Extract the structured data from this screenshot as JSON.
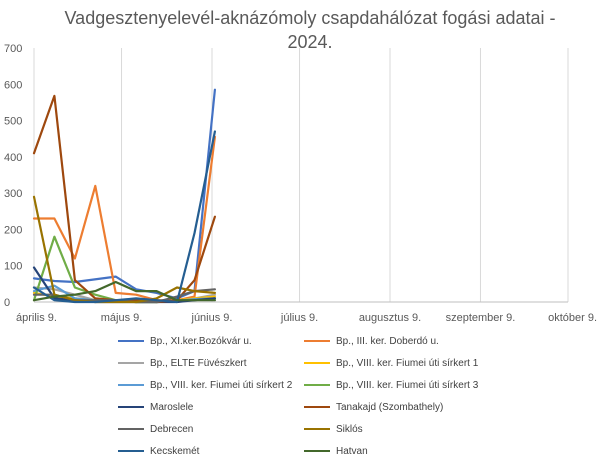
{
  "chart_data": {
    "type": "line",
    "title": "Vadgesztenyelevél-aknázómoly csapdahálózat fogási adatai - 2024.",
    "xlabel": "",
    "ylabel": "",
    "ylim": [
      0,
      700
    ],
    "yticks": [
      0,
      100,
      200,
      300,
      400,
      500,
      600,
      700
    ],
    "xlim": [
      "2024-04-09",
      "2024-10-09"
    ],
    "xticks": [
      {
        "label": "április 9.",
        "date": "2024-04-09"
      },
      {
        "label": "május 9.",
        "date": "2024-05-09"
      },
      {
        "label": "június 9.",
        "date": "2024-06-09"
      },
      {
        "label": "július 9.",
        "date": "2024-07-09"
      },
      {
        "label": "augusztus 9.",
        "date": "2024-08-09"
      },
      {
        "label": "szeptember 9.",
        "date": "2024-09-09"
      },
      {
        "label": "október 9.",
        "date": "2024-10-09"
      }
    ],
    "grid": "vertical",
    "legend_position": "bottom",
    "series": [
      {
        "name": "Bp., XI.ker.Bozókvár u.",
        "color": "#4472c4",
        "points": [
          [
            "2024-04-09",
            65
          ],
          [
            "2024-04-16",
            58
          ],
          [
            "2024-04-23",
            55
          ],
          [
            "2024-05-07",
            70
          ],
          [
            "2024-05-14",
            35
          ],
          [
            "2024-05-21",
            25
          ],
          [
            "2024-05-28",
            10
          ],
          [
            "2024-06-03",
            30
          ],
          [
            "2024-06-10",
            585
          ]
        ]
      },
      {
        "name": "Bp., III. ker. Doberdó u.",
        "color": "#ed7d31",
        "points": [
          [
            "2024-04-09",
            230
          ],
          [
            "2024-04-16",
            230
          ],
          [
            "2024-04-23",
            120
          ],
          [
            "2024-04-30",
            320
          ],
          [
            "2024-05-07",
            25
          ],
          [
            "2024-05-14",
            20
          ],
          [
            "2024-05-21",
            5
          ],
          [
            "2024-05-28",
            5
          ],
          [
            "2024-06-03",
            15
          ],
          [
            "2024-06-10",
            455
          ]
        ]
      },
      {
        "name": "Bp., ELTE Füvészkert",
        "color": "#a5a5a5",
        "points": [
          [
            "2024-04-09",
            40
          ],
          [
            "2024-04-16",
            35
          ],
          [
            "2024-04-23",
            20
          ],
          [
            "2024-04-30",
            5
          ],
          [
            "2024-05-07",
            3
          ],
          [
            "2024-05-14",
            0
          ],
          [
            "2024-05-21",
            0
          ],
          [
            "2024-05-28",
            2
          ],
          [
            "2024-06-03",
            10
          ],
          [
            "2024-06-10",
            20
          ]
        ]
      },
      {
        "name": "Bp., VIII. ker. Fiumei úti sírkert 1",
        "color": "#ffc000",
        "points": [
          [
            "2024-04-09",
            25
          ],
          [
            "2024-04-16",
            15
          ],
          [
            "2024-04-23",
            10
          ],
          [
            "2024-04-30",
            5
          ],
          [
            "2024-05-07",
            2
          ],
          [
            "2024-05-14",
            0
          ],
          [
            "2024-05-21",
            0
          ],
          [
            "2024-05-28",
            5
          ],
          [
            "2024-06-03",
            10
          ],
          [
            "2024-06-10",
            15
          ]
        ]
      },
      {
        "name": "Bp., VIII. ker. Fiumei úti sírkert 2",
        "color": "#5b9bd5",
        "points": [
          [
            "2024-04-09",
            30
          ],
          [
            "2024-04-16",
            45
          ],
          [
            "2024-04-23",
            10
          ],
          [
            "2024-04-30",
            5
          ],
          [
            "2024-05-07",
            3
          ],
          [
            "2024-05-14",
            0
          ],
          [
            "2024-05-21",
            0
          ],
          [
            "2024-05-28",
            3
          ],
          [
            "2024-06-03",
            8
          ],
          [
            "2024-06-10",
            10
          ]
        ]
      },
      {
        "name": "Bp., VIII. ker. Fiumei úti sírkert 3",
        "color": "#70ad47",
        "points": [
          [
            "2024-04-09",
            5
          ],
          [
            "2024-04-16",
            180
          ],
          [
            "2024-04-23",
            40
          ],
          [
            "2024-04-30",
            20
          ],
          [
            "2024-05-07",
            5
          ],
          [
            "2024-05-14",
            0
          ],
          [
            "2024-05-21",
            0
          ],
          [
            "2024-05-28",
            2
          ],
          [
            "2024-06-03",
            5
          ],
          [
            "2024-06-10",
            10
          ]
        ]
      },
      {
        "name": "Maroslele",
        "color": "#264478",
        "points": [
          [
            "2024-04-09",
            95
          ],
          [
            "2024-04-16",
            10
          ],
          [
            "2024-04-23",
            5
          ],
          [
            "2024-04-30",
            0
          ],
          [
            "2024-05-07",
            0
          ],
          [
            "2024-05-14",
            0
          ],
          [
            "2024-05-21",
            0
          ],
          [
            "2024-05-28",
            0
          ],
          [
            "2024-06-03",
            5
          ],
          [
            "2024-06-10",
            10
          ]
        ]
      },
      {
        "name": "Tanakajd (Szombathely)",
        "color": "#9e480e",
        "points": [
          [
            "2024-04-09",
            410
          ],
          [
            "2024-04-16",
            568
          ],
          [
            "2024-04-23",
            60
          ],
          [
            "2024-04-30",
            10
          ],
          [
            "2024-05-07",
            5
          ],
          [
            "2024-05-14",
            5
          ],
          [
            "2024-05-21",
            0
          ],
          [
            "2024-05-28",
            5
          ],
          [
            "2024-06-03",
            60
          ],
          [
            "2024-06-10",
            235
          ]
        ]
      },
      {
        "name": "Debrecen",
        "color": "#636363",
        "points": [
          [
            "2024-04-09",
            20
          ],
          [
            "2024-04-16",
            20
          ],
          [
            "2024-04-23",
            5
          ],
          [
            "2024-04-30",
            5
          ],
          [
            "2024-05-07",
            5
          ],
          [
            "2024-05-14",
            0
          ],
          [
            "2024-05-21",
            0
          ],
          [
            "2024-05-28",
            15
          ],
          [
            "2024-06-03",
            30
          ],
          [
            "2024-06-10",
            35
          ]
        ]
      },
      {
        "name": "Siklós",
        "color": "#997300",
        "points": [
          [
            "2024-04-09",
            290
          ],
          [
            "2024-04-16",
            20
          ],
          [
            "2024-04-23",
            5
          ],
          [
            "2024-04-30",
            0
          ],
          [
            "2024-05-07",
            0
          ],
          [
            "2024-05-14",
            0
          ],
          [
            "2024-05-21",
            10
          ],
          [
            "2024-05-28",
            40
          ],
          [
            "2024-06-03",
            30
          ],
          [
            "2024-06-10",
            25
          ]
        ]
      },
      {
        "name": "Kecskemét",
        "color": "#255e91",
        "points": [
          [
            "2024-04-09",
            40
          ],
          [
            "2024-04-16",
            5
          ],
          [
            "2024-04-23",
            0
          ],
          [
            "2024-04-30",
            0
          ],
          [
            "2024-05-07",
            5
          ],
          [
            "2024-05-14",
            10
          ],
          [
            "2024-05-21",
            5
          ],
          [
            "2024-05-28",
            0
          ],
          [
            "2024-06-03",
            190
          ],
          [
            "2024-06-10",
            470
          ]
        ]
      },
      {
        "name": "Hatvan",
        "color": "#43682b",
        "points": [
          [
            "2024-04-09",
            5
          ],
          [
            "2024-04-16",
            15
          ],
          [
            "2024-04-23",
            20
          ],
          [
            "2024-04-30",
            30
          ],
          [
            "2024-05-07",
            55
          ],
          [
            "2024-05-14",
            30
          ],
          [
            "2024-05-21",
            30
          ],
          [
            "2024-05-28",
            5
          ],
          [
            "2024-06-03",
            5
          ],
          [
            "2024-06-10",
            5
          ]
        ]
      }
    ]
  }
}
